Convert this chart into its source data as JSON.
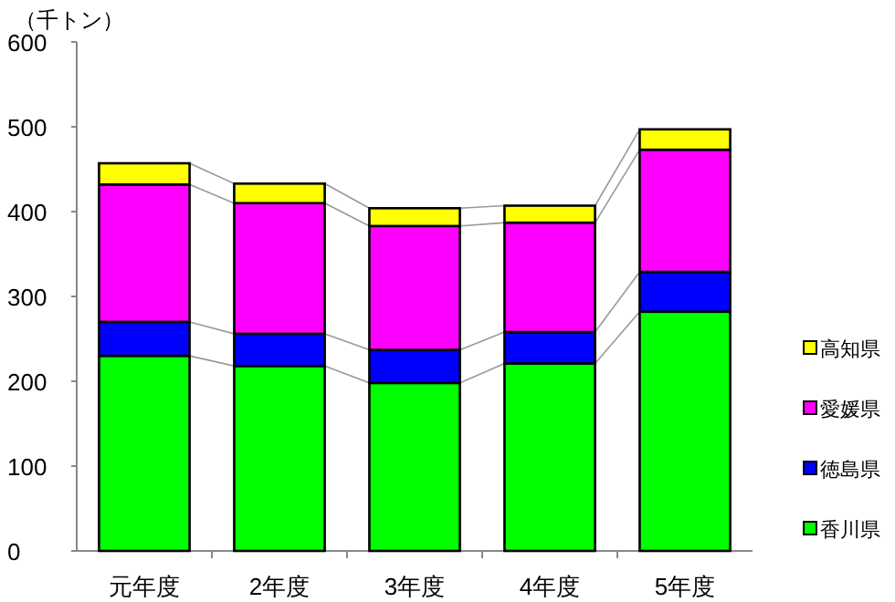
{
  "chart_data": {
    "type": "bar",
    "stacked": true,
    "ylabel": "（千トン）",
    "categories": [
      "元年度",
      "2年度",
      "3年度",
      "4年度",
      "5年度"
    ],
    "series": [
      {
        "name": "香川県",
        "color": "#00ff00",
        "values": [
          230,
          218,
          198,
          221,
          282
        ]
      },
      {
        "name": "徳島県",
        "color": "#0000ff",
        "values": [
          40,
          38,
          39,
          37,
          47
        ]
      },
      {
        "name": "愛媛県",
        "color": "#ff00ff",
        "values": [
          162,
          154,
          146,
          129,
          144
        ]
      },
      {
        "name": "高知県",
        "color": "#ffff00",
        "values": [
          25,
          23,
          21,
          20,
          24
        ]
      }
    ],
    "ylim": [
      0,
      600
    ],
    "yticks": [
      0,
      100,
      200,
      300,
      400,
      500,
      600
    ],
    "legend": "right",
    "grid": false
  }
}
